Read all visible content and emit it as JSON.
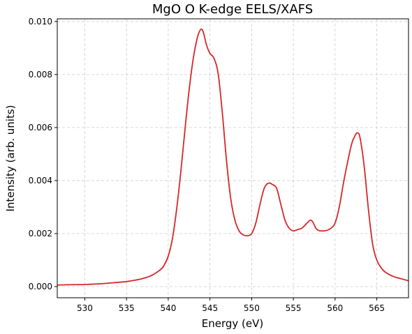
{
  "chart_data": {
    "type": "line",
    "title": "MgO O K-edge EELS/XAFS",
    "xlabel": "Energy (eV)",
    "ylabel": "Intensity (arb. units)",
    "xlim": [
      526.7,
      568.8
    ],
    "ylim": [
      -0.00042,
      0.0101
    ],
    "xticks": [
      530,
      535,
      540,
      545,
      550,
      555,
      560,
      565
    ],
    "yticks": [
      0.0,
      0.002,
      0.004,
      0.006,
      0.008,
      0.01
    ],
    "ytick_labels": [
      "0.000",
      "0.002",
      "0.004",
      "0.006",
      "0.008",
      "0.010"
    ],
    "grid": true,
    "grid_style": "dashed",
    "line_color": "#d62728",
    "series": [
      {
        "x": [
          526.7,
          528,
          530,
          532,
          534,
          535,
          536,
          537,
          538,
          539,
          539.5,
          540,
          540.5,
          541,
          541.5,
          542,
          542.5,
          543,
          543.5,
          543.9,
          544.2,
          544.6,
          545,
          545.5,
          546,
          546.5,
          547,
          547.5,
          548,
          548.5,
          549,
          549.5,
          550,
          550.5,
          551,
          551.5,
          552,
          552.5,
          553,
          553.5,
          554,
          554.5,
          555,
          555.5,
          556,
          556.5,
          557,
          557.3,
          557.7,
          558,
          558.5,
          559,
          559.5,
          560,
          560.5,
          561,
          561.5,
          562,
          562.4,
          562.7,
          563,
          563.5,
          564,
          564.5,
          565,
          565.5,
          566,
          567,
          568,
          568.8
        ],
        "y": [
          6e-05,
          7e-05,
          8e-05,
          0.00011,
          0.00016,
          0.00019,
          0.00024,
          0.00031,
          0.00042,
          0.00062,
          0.0008,
          0.00115,
          0.0018,
          0.0029,
          0.0043,
          0.0059,
          0.0074,
          0.0086,
          0.0094,
          0.0097,
          0.0096,
          0.0091,
          0.0088,
          0.0086,
          0.008,
          0.0065,
          0.0047,
          0.0033,
          0.0025,
          0.0021,
          0.00195,
          0.00192,
          0.002,
          0.0024,
          0.0031,
          0.0037,
          0.0039,
          0.00385,
          0.0037,
          0.0031,
          0.0025,
          0.0022,
          0.0021,
          0.00215,
          0.0022,
          0.00235,
          0.0025,
          0.00245,
          0.0022,
          0.00212,
          0.0021,
          0.00212,
          0.0022,
          0.0024,
          0.003,
          0.0039,
          0.0047,
          0.0054,
          0.0057,
          0.0058,
          0.0056,
          0.0045,
          0.0029,
          0.0016,
          0.001,
          0.00072,
          0.00055,
          0.00038,
          0.00029,
          0.00022
        ]
      }
    ]
  }
}
